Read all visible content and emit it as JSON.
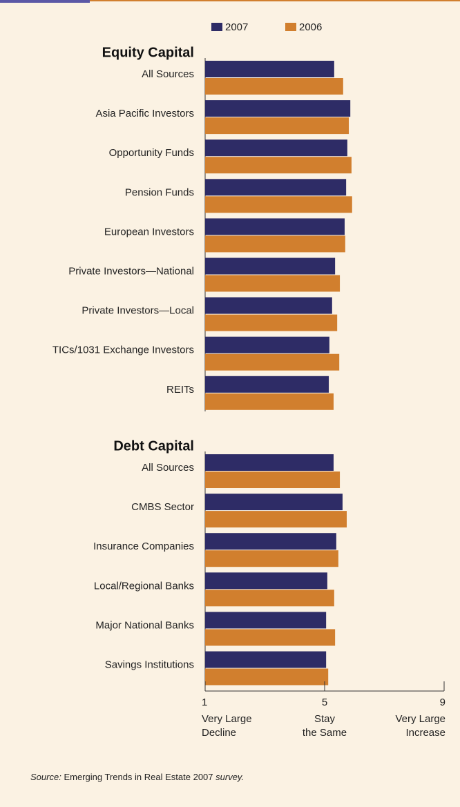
{
  "chart_data": {
    "type": "bar",
    "orientation": "horizontal",
    "groups": [
      {
        "title": "Equity Capital",
        "categories": [
          "All Sources",
          "Asia Pacific Investors",
          "Opportunity Funds",
          "Pension Funds",
          "European Investors",
          "Private Investors—National",
          "Private Investors—Local",
          "TICs/1031 Exchange Investors",
          "REITs"
        ],
        "series": [
          {
            "name": "2007",
            "color": "#2e2c66",
            "values": [
              5.32,
              5.86,
              5.76,
              5.72,
              5.67,
              5.35,
              5.25,
              5.16,
              5.14
            ]
          },
          {
            "name": "2006",
            "color": "#d17f2e",
            "values": [
              5.62,
              5.81,
              5.9,
              5.92,
              5.69,
              5.51,
              5.42,
              5.49,
              5.3
            ]
          }
        ]
      },
      {
        "title": "Debt Capital",
        "categories": [
          "All Sources",
          "CMBS Sector",
          "Insurance Companies",
          "Local/Regional Banks",
          "Major National Banks",
          "Savings Institutions"
        ],
        "series": [
          {
            "name": "2007",
            "color": "#2e2c66",
            "values": [
              5.3,
              5.6,
              5.39,
              5.09,
              5.05,
              5.05
            ]
          },
          {
            "name": "2006",
            "color": "#d17f2e",
            "values": [
              5.51,
              5.74,
              5.46,
              5.32,
              5.35,
              5.12
            ]
          }
        ]
      }
    ],
    "xlim": [
      1,
      9
    ],
    "xticks": [
      1,
      5,
      9
    ],
    "xtick_captions": [
      [
        "Very Large",
        "Decline"
      ],
      [
        "Stay",
        "the Same"
      ],
      [
        "Very Large",
        "Increase"
      ]
    ],
    "legend_position": "top",
    "source": [
      "Source:",
      "Emerging Trends in Real Estate 2007",
      "survey."
    ]
  }
}
